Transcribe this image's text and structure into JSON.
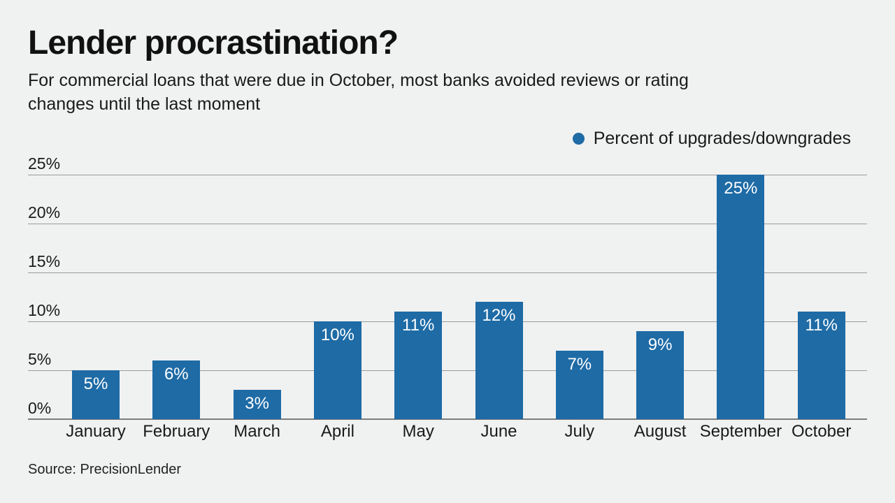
{
  "page": {
    "background_color": "#f0f1f1",
    "text_color": "#1a1a1a"
  },
  "chart_data": {
    "type": "bar",
    "title": "Lender procrastination?",
    "subtitle": "For commercial loans that were due in October, most banks avoided reviews or rating changes until the last moment",
    "legend": [
      {
        "label": "Percent of upgrades/downgrades",
        "marker": "circle-icon",
        "color": "#1e6ba6"
      }
    ],
    "legend_position": "top-right",
    "categories": [
      "January",
      "February",
      "March",
      "April",
      "May",
      "June",
      "July",
      "August",
      "September",
      "October"
    ],
    "values": [
      5,
      6,
      3,
      10,
      11,
      12,
      7,
      9,
      25,
      11
    ],
    "data_labels": [
      "5%",
      "6%",
      "3%",
      "10%",
      "11%",
      "12%",
      "7%",
      "9%",
      "25%",
      "11%"
    ],
    "xlabel": "",
    "ylabel": "",
    "ylim": [
      0,
      25
    ],
    "yticks": [
      0,
      5,
      10,
      15,
      20,
      25
    ],
    "ytick_suffix": "%",
    "grid": "horizontal",
    "bar_color": "#1e6ba6",
    "gridline_color": "#9b9b9b",
    "axis_line_color": "#7d7d7d",
    "source": "Source: PrecisionLender"
  }
}
